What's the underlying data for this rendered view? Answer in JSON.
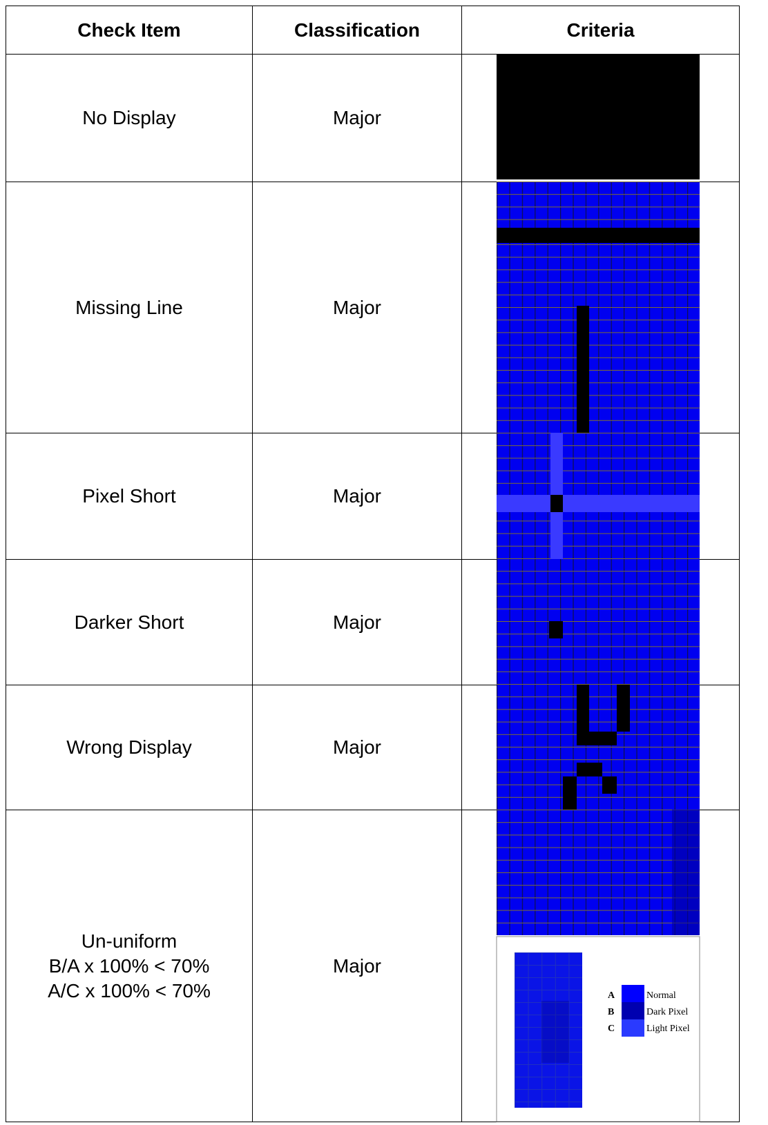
{
  "table": {
    "header": [
      "Check Item",
      "Classification",
      "Criteria"
    ],
    "rows": [
      {
        "item": [
          "No Display"
        ],
        "classification": "Major"
      },
      {
        "item": [
          "Missing Line"
        ],
        "classification": "Major"
      },
      {
        "item": [
          "Pixel Short"
        ],
        "classification": "Major"
      },
      {
        "item": [
          "Darker Short"
        ],
        "classification": "Major"
      },
      {
        "item": [
          "Wrong Display"
        ],
        "classification": "Major"
      },
      {
        "item": [
          "Un-uniform",
          "B/A x 100% < 70%",
          "A/C x 100% < 70%"
        ],
        "classification": "Major"
      }
    ]
  },
  "legend": {
    "items": [
      {
        "key": "A",
        "label": "Normal"
      },
      {
        "key": "B",
        "label": "Dark Pixel"
      },
      {
        "key": "C",
        "label": "Light Pixel"
      }
    ]
  }
}
